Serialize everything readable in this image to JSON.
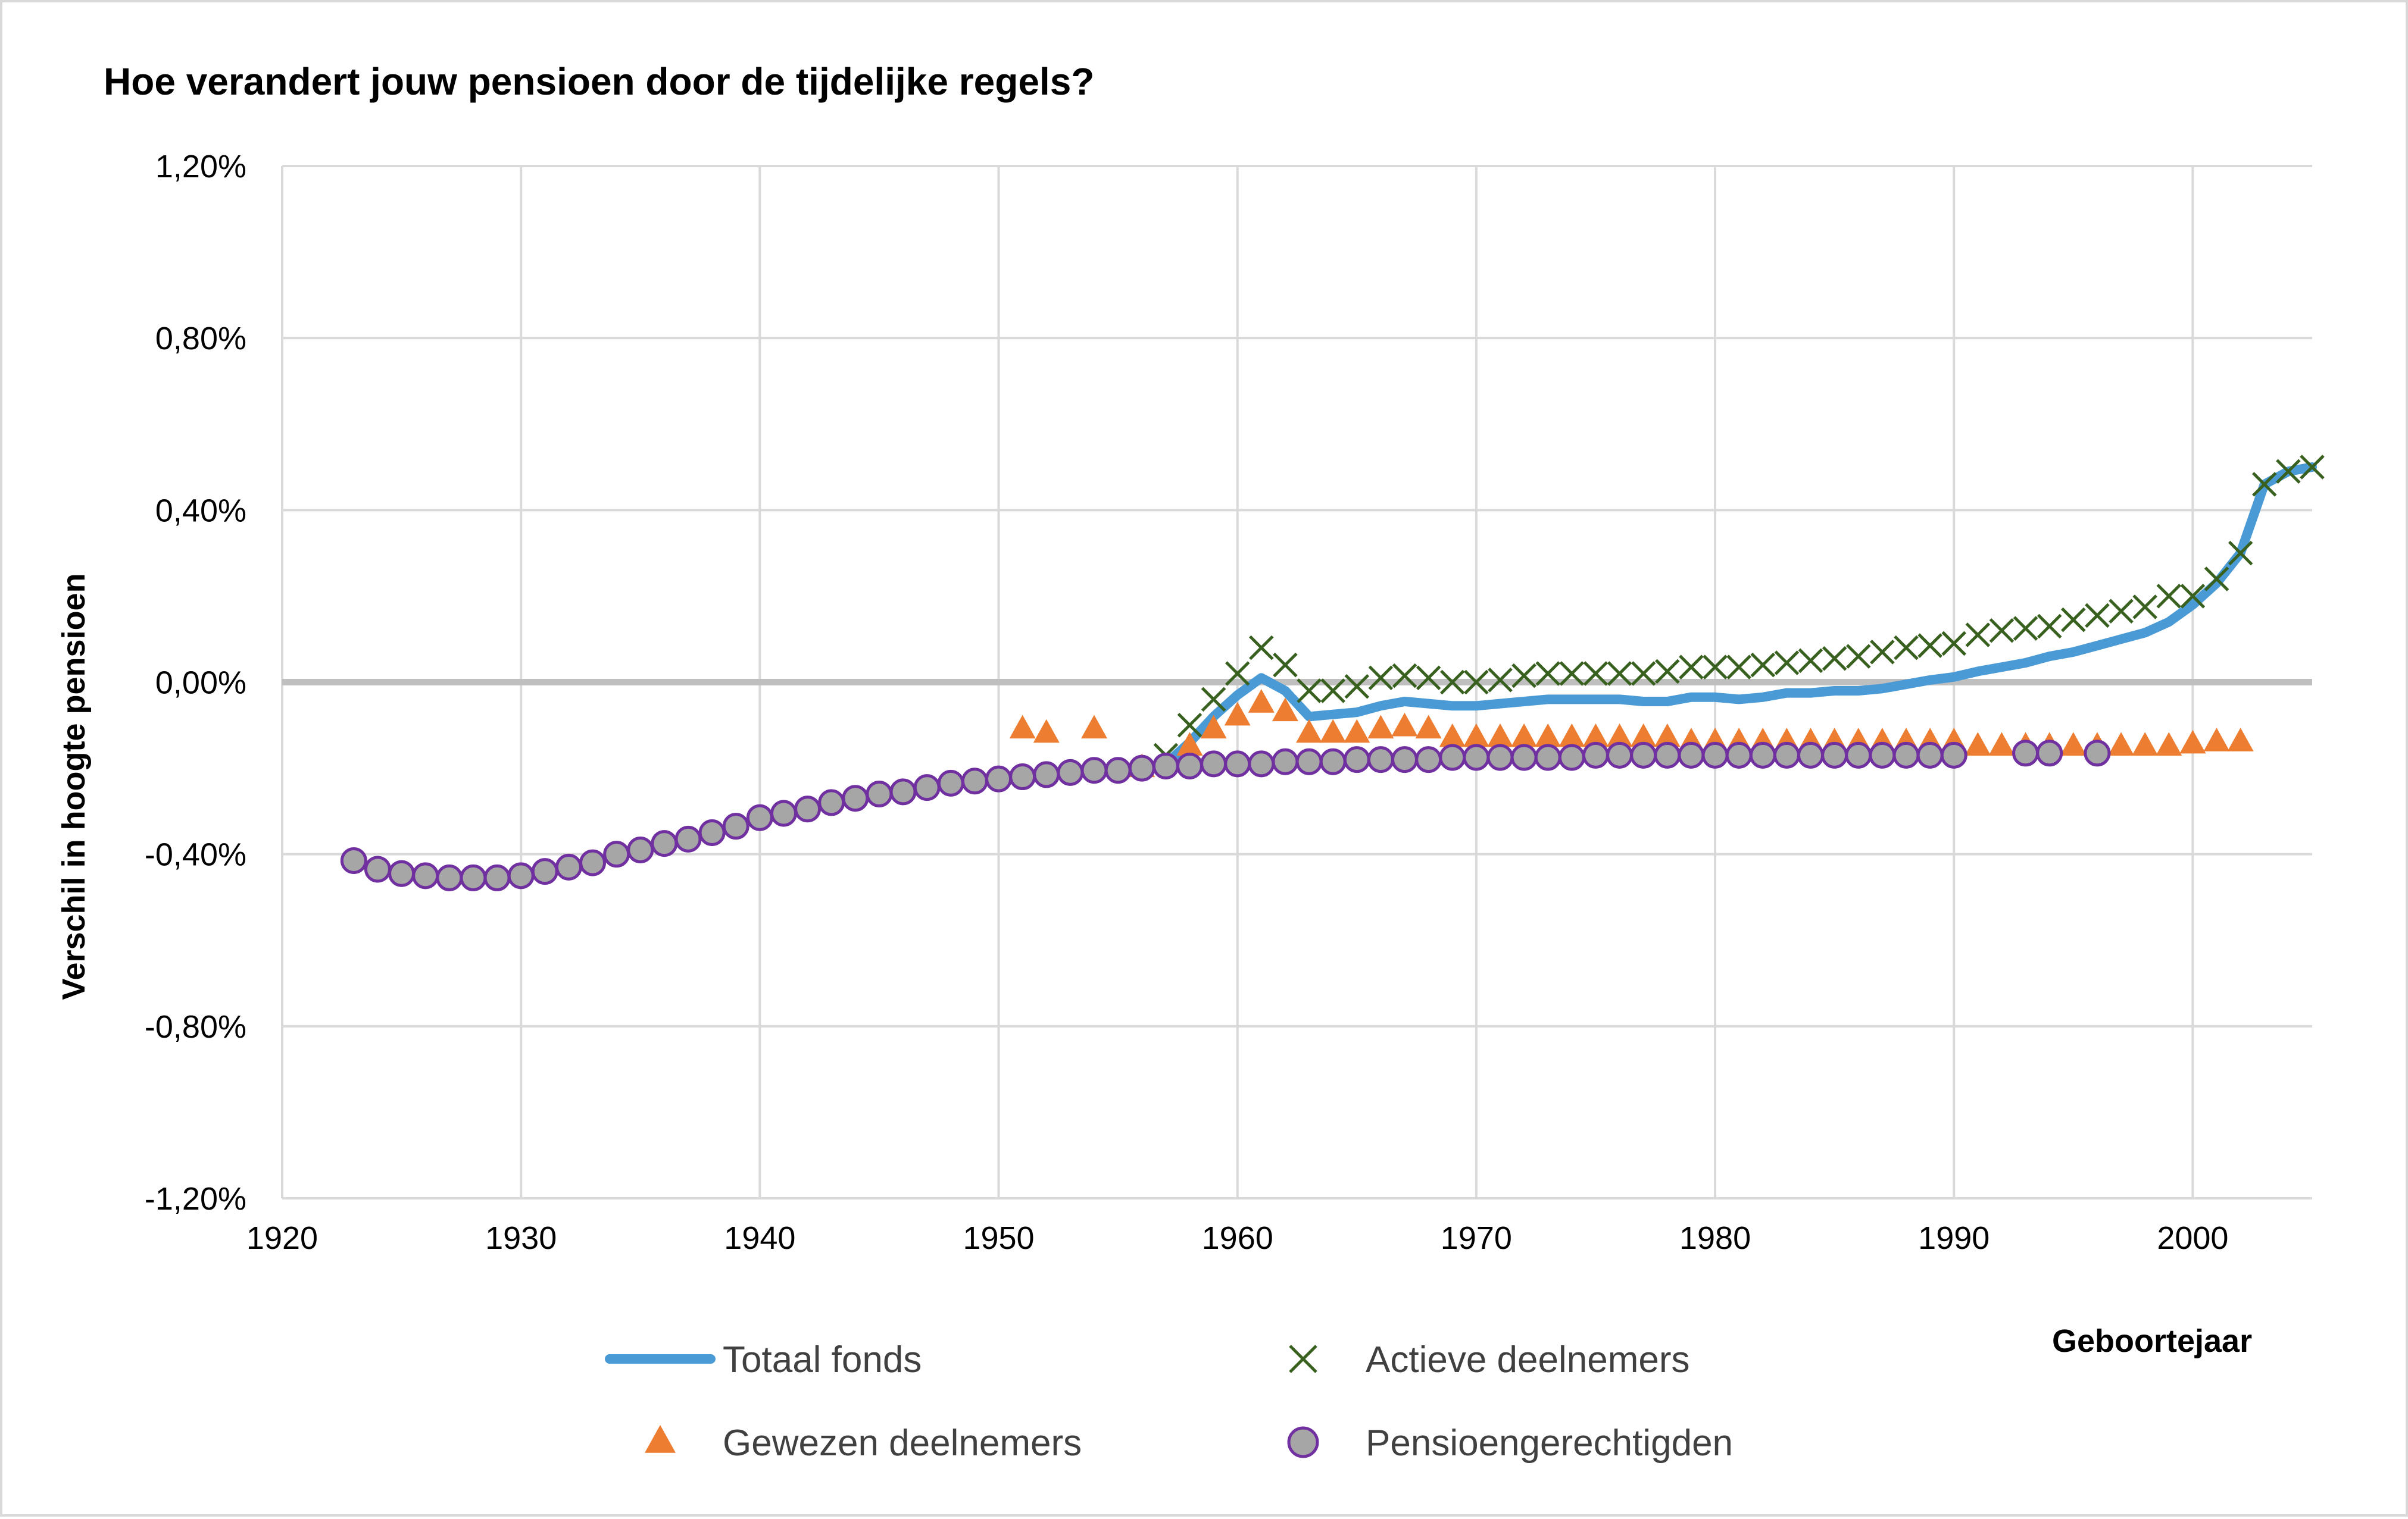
{
  "chart_data": {
    "type": "line",
    "title": "Hoe verandert jouw pensioen door de tijdelijke regels?",
    "xlabel": "Geboortejaar",
    "ylabel": "Verschil in hoogte pensioen",
    "xlim": [
      1920,
      2005
    ],
    "ylim": [
      -1.2,
      1.2
    ],
    "x_ticks": [
      1920,
      1930,
      1940,
      1950,
      1960,
      1970,
      1980,
      1990,
      2000
    ],
    "y_ticks": [
      -1.2,
      -0.8,
      -0.4,
      0.0,
      0.4,
      0.8,
      1.2
    ],
    "y_tick_labels": [
      "-1,20%",
      "-0,80%",
      "-0,40%",
      "0,00%",
      "0,40%",
      "0,80%",
      "1,20%"
    ],
    "grid": true,
    "legend_position": "bottom",
    "series": [
      {
        "name": "Totaal fonds",
        "marker": "line",
        "color": "#4a9ad6",
        "points": [
          [
            1955,
            -0.2
          ],
          [
            1956,
            -0.2
          ],
          [
            1957,
            -0.19
          ],
          [
            1958,
            -0.14
          ],
          [
            1959,
            -0.08
          ],
          [
            1960,
            -0.03
          ],
          [
            1961,
            0.01
          ],
          [
            1962,
            -0.02
          ],
          [
            1963,
            -0.08
          ],
          [
            1964,
            -0.075
          ],
          [
            1965,
            -0.07
          ],
          [
            1966,
            -0.055
          ],
          [
            1967,
            -0.045
          ],
          [
            1968,
            -0.05
          ],
          [
            1969,
            -0.055
          ],
          [
            1970,
            -0.055
          ],
          [
            1971,
            -0.05
          ],
          [
            1972,
            -0.045
          ],
          [
            1973,
            -0.04
          ],
          [
            1974,
            -0.04
          ],
          [
            1975,
            -0.04
          ],
          [
            1976,
            -0.04
          ],
          [
            1977,
            -0.045
          ],
          [
            1978,
            -0.045
          ],
          [
            1979,
            -0.035
          ],
          [
            1980,
            -0.035
          ],
          [
            1981,
            -0.04
          ],
          [
            1982,
            -0.035
          ],
          [
            1983,
            -0.025
          ],
          [
            1984,
            -0.025
          ],
          [
            1985,
            -0.02
          ],
          [
            1986,
            -0.02
          ],
          [
            1987,
            -0.015
          ],
          [
            1988,
            -0.005
          ],
          [
            1989,
            0.005
          ],
          [
            1990,
            0.012
          ],
          [
            1991,
            0.025
          ],
          [
            1992,
            0.035
          ],
          [
            1993,
            0.045
          ],
          [
            1994,
            0.06
          ],
          [
            1995,
            0.07
          ],
          [
            1996,
            0.085
          ],
          [
            1997,
            0.1
          ],
          [
            1998,
            0.115
          ],
          [
            1999,
            0.14
          ],
          [
            2000,
            0.18
          ],
          [
            2001,
            0.23
          ],
          [
            2002,
            0.3
          ],
          [
            2003,
            0.46
          ],
          [
            2004,
            0.49
          ],
          [
            2005,
            0.5
          ]
        ]
      },
      {
        "name": "Actieve deelnemers",
        "marker": "x",
        "color": "#38601e",
        "points": [
          [
            1957,
            -0.17
          ],
          [
            1958,
            -0.1
          ],
          [
            1959,
            -0.04
          ],
          [
            1960,
            0.02
          ],
          [
            1961,
            0.08
          ],
          [
            1962,
            0.04
          ],
          [
            1963,
            -0.02
          ],
          [
            1964,
            -0.02
          ],
          [
            1965,
            -0.01
          ],
          [
            1966,
            0.01
          ],
          [
            1967,
            0.015
          ],
          [
            1968,
            0.01
          ],
          [
            1969,
            0.0
          ],
          [
            1970,
            0.0
          ],
          [
            1971,
            0.005
          ],
          [
            1972,
            0.015
          ],
          [
            1973,
            0.02
          ],
          [
            1974,
            0.02
          ],
          [
            1975,
            0.02
          ],
          [
            1976,
            0.02
          ],
          [
            1977,
            0.02
          ],
          [
            1978,
            0.025
          ],
          [
            1979,
            0.035
          ],
          [
            1980,
            0.035
          ],
          [
            1981,
            0.035
          ],
          [
            1982,
            0.04
          ],
          [
            1983,
            0.045
          ],
          [
            1984,
            0.05
          ],
          [
            1985,
            0.055
          ],
          [
            1986,
            0.06
          ],
          [
            1987,
            0.07
          ],
          [
            1988,
            0.08
          ],
          [
            1989,
            0.085
          ],
          [
            1990,
            0.09
          ],
          [
            1991,
            0.11
          ],
          [
            1992,
            0.12
          ],
          [
            1993,
            0.125
          ],
          [
            1994,
            0.13
          ],
          [
            1995,
            0.145
          ],
          [
            1996,
            0.155
          ],
          [
            1997,
            0.165
          ],
          [
            1998,
            0.175
          ],
          [
            1999,
            0.2
          ],
          [
            2000,
            0.2
          ],
          [
            2001,
            0.24
          ],
          [
            2002,
            0.3
          ],
          [
            2003,
            0.46
          ],
          [
            2004,
            0.49
          ],
          [
            2005,
            0.5
          ]
        ]
      },
      {
        "name": "Gewezen deelnemers",
        "marker": "triangle",
        "color": "#ed7d31",
        "points": [
          [
            1951,
            -0.11
          ],
          [
            1952,
            -0.12
          ],
          [
            1954,
            -0.11
          ],
          [
            1956,
            -0.2
          ],
          [
            1958,
            -0.15
          ],
          [
            1959,
            -0.11
          ],
          [
            1960,
            -0.08
          ],
          [
            1961,
            -0.05
          ],
          [
            1962,
            -0.07
          ],
          [
            1963,
            -0.12
          ],
          [
            1964,
            -0.12
          ],
          [
            1965,
            -0.12
          ],
          [
            1966,
            -0.11
          ],
          [
            1967,
            -0.105
          ],
          [
            1968,
            -0.11
          ],
          [
            1969,
            -0.13
          ],
          [
            1970,
            -0.13
          ],
          [
            1971,
            -0.13
          ],
          [
            1972,
            -0.13
          ],
          [
            1973,
            -0.13
          ],
          [
            1974,
            -0.13
          ],
          [
            1975,
            -0.13
          ],
          [
            1976,
            -0.13
          ],
          [
            1977,
            -0.13
          ],
          [
            1978,
            -0.13
          ],
          [
            1979,
            -0.14
          ],
          [
            1980,
            -0.14
          ],
          [
            1981,
            -0.14
          ],
          [
            1982,
            -0.14
          ],
          [
            1983,
            -0.14
          ],
          [
            1984,
            -0.14
          ],
          [
            1985,
            -0.14
          ],
          [
            1986,
            -0.14
          ],
          [
            1987,
            -0.14
          ],
          [
            1988,
            -0.14
          ],
          [
            1989,
            -0.14
          ],
          [
            1990,
            -0.14
          ],
          [
            1991,
            -0.15
          ],
          [
            1992,
            -0.15
          ],
          [
            1993,
            -0.15
          ],
          [
            1994,
            -0.15
          ],
          [
            1995,
            -0.15
          ],
          [
            1996,
            -0.15
          ],
          [
            1997,
            -0.15
          ],
          [
            1998,
            -0.15
          ],
          [
            1999,
            -0.15
          ],
          [
            2000,
            -0.145
          ],
          [
            2001,
            -0.14
          ],
          [
            2002,
            -0.14
          ]
        ]
      },
      {
        "name": "Pensioengerechtigden",
        "marker": "circle",
        "color": "#a6a6a6",
        "edge_color": "#7030a0",
        "points": [
          [
            1923,
            -0.415
          ],
          [
            1924,
            -0.435
          ],
          [
            1925,
            -0.445
          ],
          [
            1926,
            -0.45
          ],
          [
            1927,
            -0.455
          ],
          [
            1928,
            -0.455
          ],
          [
            1929,
            -0.455
          ],
          [
            1930,
            -0.45
          ],
          [
            1931,
            -0.44
          ],
          [
            1932,
            -0.43
          ],
          [
            1933,
            -0.42
          ],
          [
            1934,
            -0.4
          ],
          [
            1935,
            -0.39
          ],
          [
            1936,
            -0.375
          ],
          [
            1937,
            -0.365
          ],
          [
            1938,
            -0.35
          ],
          [
            1939,
            -0.335
          ],
          [
            1940,
            -0.315
          ],
          [
            1941,
            -0.305
          ],
          [
            1942,
            -0.295
          ],
          [
            1943,
            -0.28
          ],
          [
            1944,
            -0.27
          ],
          [
            1945,
            -0.26
          ],
          [
            1946,
            -0.255
          ],
          [
            1947,
            -0.245
          ],
          [
            1948,
            -0.235
          ],
          [
            1949,
            -0.23
          ],
          [
            1950,
            -0.225
          ],
          [
            1951,
            -0.22
          ],
          [
            1952,
            -0.215
          ],
          [
            1953,
            -0.21
          ],
          [
            1954,
            -0.205
          ],
          [
            1955,
            -0.205
          ],
          [
            1956,
            -0.2
          ],
          [
            1957,
            -0.195
          ],
          [
            1958,
            -0.195
          ],
          [
            1959,
            -0.19
          ],
          [
            1960,
            -0.19
          ],
          [
            1961,
            -0.19
          ],
          [
            1962,
            -0.185
          ],
          [
            1963,
            -0.185
          ],
          [
            1964,
            -0.185
          ],
          [
            1965,
            -0.18
          ],
          [
            1966,
            -0.18
          ],
          [
            1967,
            -0.18
          ],
          [
            1968,
            -0.18
          ],
          [
            1969,
            -0.175
          ],
          [
            1970,
            -0.175
          ],
          [
            1971,
            -0.175
          ],
          [
            1972,
            -0.175
          ],
          [
            1973,
            -0.175
          ],
          [
            1974,
            -0.175
          ],
          [
            1975,
            -0.17
          ],
          [
            1976,
            -0.17
          ],
          [
            1977,
            -0.17
          ],
          [
            1978,
            -0.17
          ],
          [
            1979,
            -0.17
          ],
          [
            1980,
            -0.17
          ],
          [
            1981,
            -0.17
          ],
          [
            1982,
            -0.17
          ],
          [
            1983,
            -0.17
          ],
          [
            1984,
            -0.17
          ],
          [
            1985,
            -0.17
          ],
          [
            1986,
            -0.17
          ],
          [
            1987,
            -0.17
          ],
          [
            1988,
            -0.17
          ],
          [
            1989,
            -0.17
          ],
          [
            1990,
            -0.17
          ],
          [
            1993,
            -0.165
          ],
          [
            1994,
            -0.165
          ],
          [
            1996,
            -0.165
          ]
        ]
      }
    ]
  }
}
